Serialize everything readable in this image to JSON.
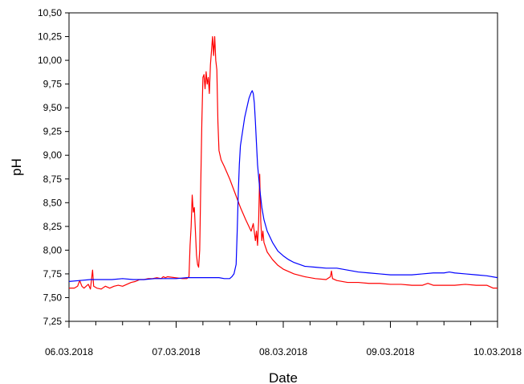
{
  "chart_data": {
    "type": "line",
    "xlabel": "Date",
    "ylabel": "pH",
    "ylim": [
      7.25,
      10.5
    ],
    "y_ticks": [
      "7,25",
      "7,50",
      "7,75",
      "8,00",
      "8,25",
      "8,50",
      "8,75",
      "9,00",
      "9,25",
      "9,50",
      "9,75",
      "10,00",
      "10,25",
      "10,50"
    ],
    "x_ticks": [
      "06.03.2018",
      "07.03.2018",
      "08.03.2018",
      "09.03.2018",
      "10.03.2018"
    ],
    "xlim_days": [
      0,
      4
    ],
    "grid": false,
    "series": [
      {
        "color": "#ff0000",
        "points": [
          [
            0.0,
            7.6
          ],
          [
            0.05,
            7.6
          ],
          [
            0.08,
            7.62
          ],
          [
            0.1,
            7.68
          ],
          [
            0.12,
            7.62
          ],
          [
            0.14,
            7.6
          ],
          [
            0.16,
            7.62
          ],
          [
            0.18,
            7.64
          ],
          [
            0.2,
            7.59
          ],
          [
            0.22,
            7.79
          ],
          [
            0.23,
            7.62
          ],
          [
            0.26,
            7.6
          ],
          [
            0.3,
            7.59
          ],
          [
            0.34,
            7.62
          ],
          [
            0.38,
            7.6
          ],
          [
            0.42,
            7.62
          ],
          [
            0.46,
            7.63
          ],
          [
            0.5,
            7.62
          ],
          [
            0.54,
            7.64
          ],
          [
            0.58,
            7.66
          ],
          [
            0.62,
            7.67
          ],
          [
            0.66,
            7.69
          ],
          [
            0.7,
            7.69
          ],
          [
            0.74,
            7.7
          ],
          [
            0.78,
            7.7
          ],
          [
            0.82,
            7.71
          ],
          [
            0.86,
            7.7
          ],
          [
            0.88,
            7.72
          ],
          [
            0.9,
            7.71
          ],
          [
            0.92,
            7.72
          ],
          [
            1.06,
            7.7
          ],
          [
            1.1,
            7.7
          ],
          [
            1.12,
            7.72
          ],
          [
            1.13,
            8.05
          ],
          [
            1.14,
            8.25
          ],
          [
            1.15,
            8.58
          ],
          [
            1.16,
            8.4
          ],
          [
            1.17,
            8.45
          ],
          [
            1.18,
            8.2
          ],
          [
            1.19,
            7.95
          ],
          [
            1.2,
            7.85
          ],
          [
            1.21,
            7.82
          ],
          [
            1.22,
            8.0
          ],
          [
            1.23,
            8.7
          ],
          [
            1.24,
            9.35
          ],
          [
            1.25,
            9.82
          ],
          [
            1.26,
            9.85
          ],
          [
            1.27,
            9.7
          ],
          [
            1.28,
            9.88
          ],
          [
            1.29,
            9.75
          ],
          [
            1.3,
            9.82
          ],
          [
            1.31,
            9.65
          ],
          [
            1.32,
            9.95
          ],
          [
            1.33,
            10.1
          ],
          [
            1.34,
            10.25
          ],
          [
            1.35,
            10.05
          ],
          [
            1.36,
            10.25
          ],
          [
            1.37,
            10.0
          ],
          [
            1.38,
            9.9
          ],
          [
            1.39,
            9.35
          ],
          [
            1.4,
            9.05
          ],
          [
            1.42,
            8.95
          ],
          [
            1.45,
            8.88
          ],
          [
            1.5,
            8.75
          ],
          [
            1.55,
            8.6
          ],
          [
            1.6,
            8.45
          ],
          [
            1.65,
            8.32
          ],
          [
            1.7,
            8.2
          ],
          [
            1.72,
            8.28
          ],
          [
            1.74,
            8.1
          ],
          [
            1.75,
            8.2
          ],
          [
            1.76,
            8.05
          ],
          [
            1.77,
            8.3
          ],
          [
            1.78,
            8.8
          ],
          [
            1.79,
            8.3
          ],
          [
            1.8,
            8.1
          ],
          [
            1.81,
            8.2
          ],
          [
            1.82,
            8.08
          ],
          [
            1.85,
            7.98
          ],
          [
            1.9,
            7.9
          ],
          [
            1.95,
            7.84
          ],
          [
            2.0,
            7.8
          ],
          [
            2.1,
            7.75
          ],
          [
            2.2,
            7.72
          ],
          [
            2.3,
            7.7
          ],
          [
            2.4,
            7.69
          ],
          [
            2.44,
            7.72
          ],
          [
            2.45,
            7.78
          ],
          [
            2.46,
            7.7
          ],
          [
            2.5,
            7.68
          ],
          [
            2.6,
            7.66
          ],
          [
            2.7,
            7.66
          ],
          [
            2.8,
            7.65
          ],
          [
            2.9,
            7.65
          ],
          [
            3.0,
            7.64
          ],
          [
            3.1,
            7.64
          ],
          [
            3.2,
            7.63
          ],
          [
            3.3,
            7.63
          ],
          [
            3.35,
            7.65
          ],
          [
            3.4,
            7.63
          ],
          [
            3.5,
            7.63
          ],
          [
            3.6,
            7.63
          ],
          [
            3.7,
            7.64
          ],
          [
            3.8,
            7.63
          ],
          [
            3.9,
            7.63
          ],
          [
            3.96,
            7.6
          ],
          [
            4.0,
            7.6
          ]
        ]
      },
      {
        "color": "#0000ff",
        "points": [
          [
            0.0,
            7.67
          ],
          [
            0.1,
            7.68
          ],
          [
            0.2,
            7.69
          ],
          [
            0.3,
            7.69
          ],
          [
            0.4,
            7.69
          ],
          [
            0.5,
            7.7
          ],
          [
            0.6,
            7.69
          ],
          [
            0.7,
            7.69
          ],
          [
            0.8,
            7.7
          ],
          [
            0.9,
            7.7
          ],
          [
            1.0,
            7.7
          ],
          [
            1.1,
            7.71
          ],
          [
            1.2,
            7.71
          ],
          [
            1.3,
            7.71
          ],
          [
            1.4,
            7.71
          ],
          [
            1.45,
            7.7
          ],
          [
            1.5,
            7.7
          ],
          [
            1.52,
            7.72
          ],
          [
            1.54,
            7.75
          ],
          [
            1.56,
            7.85
          ],
          [
            1.57,
            8.2
          ],
          [
            1.58,
            8.6
          ],
          [
            1.59,
            8.9
          ],
          [
            1.6,
            9.1
          ],
          [
            1.62,
            9.25
          ],
          [
            1.64,
            9.4
          ],
          [
            1.66,
            9.5
          ],
          [
            1.68,
            9.6
          ],
          [
            1.7,
            9.66
          ],
          [
            1.71,
            9.68
          ],
          [
            1.72,
            9.65
          ],
          [
            1.73,
            9.55
          ],
          [
            1.74,
            9.35
          ],
          [
            1.75,
            9.12
          ],
          [
            1.76,
            8.9
          ],
          [
            1.78,
            8.65
          ],
          [
            1.8,
            8.45
          ],
          [
            1.82,
            8.32
          ],
          [
            1.85,
            8.2
          ],
          [
            1.9,
            8.08
          ],
          [
            1.95,
            7.99
          ],
          [
            2.0,
            7.94
          ],
          [
            2.05,
            7.9
          ],
          [
            2.1,
            7.87
          ],
          [
            2.15,
            7.85
          ],
          [
            2.2,
            7.83
          ],
          [
            2.3,
            7.82
          ],
          [
            2.4,
            7.81
          ],
          [
            2.5,
            7.81
          ],
          [
            2.6,
            7.79
          ],
          [
            2.7,
            7.77
          ],
          [
            2.8,
            7.76
          ],
          [
            2.9,
            7.75
          ],
          [
            3.0,
            7.74
          ],
          [
            3.1,
            7.74
          ],
          [
            3.2,
            7.74
          ],
          [
            3.3,
            7.75
          ],
          [
            3.4,
            7.76
          ],
          [
            3.5,
            7.76
          ],
          [
            3.55,
            7.77
          ],
          [
            3.6,
            7.76
          ],
          [
            3.7,
            7.75
          ],
          [
            3.8,
            7.74
          ],
          [
            3.9,
            7.73
          ],
          [
            4.0,
            7.71
          ]
        ]
      }
    ]
  }
}
